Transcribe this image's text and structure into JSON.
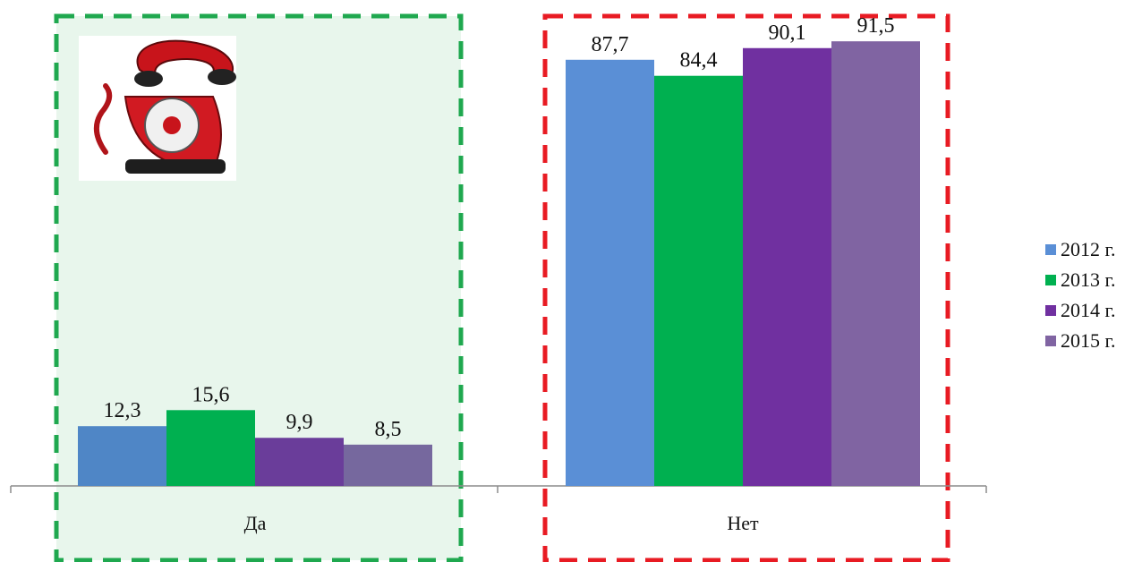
{
  "chart_data": {
    "type": "bar",
    "categories": [
      "Да",
      "Нет"
    ],
    "ylim": [
      0,
      100
    ],
    "grid": false,
    "legend_position": "right",
    "series": [
      {
        "name": "2012 г.",
        "values": [
          12.3,
          87.7
        ],
        "labels": [
          "12,3",
          "87,7"
        ],
        "color": "#5a8fd6"
      },
      {
        "name": "2013 г.",
        "values": [
          15.6,
          84.4
        ],
        "labels": [
          "15,6",
          "84,4"
        ],
        "color": "#00b050"
      },
      {
        "name": "2014 г.",
        "values": [
          9.9,
          90.1
        ],
        "labels": [
          "9,9",
          "90,1"
        ],
        "color": "#7030a0"
      },
      {
        "name": "2015 г.",
        "values": [
          8.5,
          91.5
        ],
        "labels": [
          "8,5",
          "91,5"
        ],
        "color": "#8064a2"
      }
    ],
    "bar_colors_da": [
      "#4f86c6",
      "#00b050",
      "#6a3d9a",
      "#76689e"
    ],
    "highlight_colors": {
      "da_border": "#1fa84f",
      "da_fill": "#e8f6ec",
      "net_border": "#e81b23"
    }
  }
}
